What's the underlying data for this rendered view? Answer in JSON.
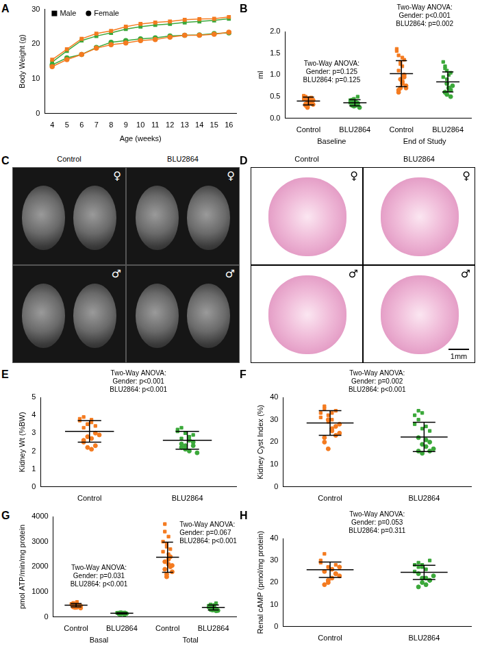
{
  "chart_data": [
    {
      "panel": "A",
      "type": "line",
      "xlabel": "Age (weeks)",
      "ylabel": "Body Weight (g)",
      "x": [
        4,
        5,
        6,
        7,
        8,
        9,
        10,
        11,
        12,
        13,
        14,
        15,
        16
      ],
      "xlim": [
        3.5,
        16.5
      ],
      "xticks": [
        4,
        5,
        6,
        7,
        8,
        9,
        10,
        11,
        12,
        13,
        14,
        15,
        16
      ],
      "ylim": [
        0,
        30
      ],
      "yticks": [
        0,
        10,
        20,
        30
      ],
      "grid": false,
      "legend": "top-left",
      "series": [
        {
          "name": "Male",
          "color": "#f47b20",
          "marker": "square",
          "values": [
            15.5,
            18.5,
            21.5,
            23,
            23.8,
            25,
            25.8,
            26.2,
            26.5,
            27,
            27.2,
            27.3,
            27.8
          ]
        },
        {
          "name": "Male",
          "color": "#3ba83a",
          "marker": "square",
          "values": [
            14.8,
            18,
            21,
            22.3,
            23.2,
            24.3,
            25,
            25.5,
            25.8,
            26.2,
            26.5,
            26.8,
            27.3
          ]
        },
        {
          "name": "Female",
          "color": "#f47b20",
          "marker": "circle",
          "values": [
            13.5,
            15.5,
            17,
            18.8,
            19.8,
            20.3,
            21,
            21.3,
            22,
            22.5,
            22.5,
            22.8,
            23.4
          ]
        },
        {
          "name": "Female",
          "color": "#3ba83a",
          "marker": "circle",
          "values": [
            14,
            16,
            17,
            19,
            20.5,
            21,
            21.5,
            21.8,
            22.3,
            22.5,
            22.6,
            23,
            23.2
          ]
        }
      ]
    },
    {
      "panel": "B",
      "type": "dot",
      "ylabel": "ml",
      "grid": false,
      "ylim": [
        0,
        2
      ],
      "yticks": [
        {
          "value": 0,
          "label": "0.0"
        },
        {
          "value": 0.5,
          "label": "0.5"
        },
        {
          "value": 1,
          "label": "1.0"
        },
        {
          "value": 1.5,
          "label": "1.5"
        },
        {
          "value": 2,
          "label": "2.0"
        }
      ],
      "categories": [
        "Control",
        "BLU2864",
        "Control",
        "BLU2864"
      ],
      "category_groups": [
        "Baseline",
        "End of Study"
      ],
      "annotations": [
        [
          "Two-Way ANOVA:",
          "Gender: p=0.125",
          "BLU2864: p=0.125"
        ],
        [
          "Two-Way ANOVA:",
          "Gender: p<0.001",
          "BLU2864: p=0.002"
        ]
      ],
      "points": [
        {
          "color": "#f47b20",
          "male": [
            0.45,
            0.5,
            0.42,
            0.38,
            0.48,
            0.52,
            0.44,
            0.4,
            0.47
          ],
          "female": [
            0.3,
            0.28,
            0.35,
            0.38,
            0.42,
            0.33,
            0.25,
            0.37,
            0.4,
            0.32
          ],
          "mean": 0.4,
          "sd": 0.09
        },
        {
          "color": "#3ba83a",
          "male": [
            0.42,
            0.4,
            0.45,
            0.38,
            0.5,
            0.36,
            0.43,
            0.39
          ],
          "female": [
            0.3,
            0.28,
            0.33,
            0.35,
            0.25,
            0.32,
            0.37,
            0.3,
            0.34
          ],
          "mean": 0.36,
          "sd": 0.07
        },
        {
          "color": "#f47b20",
          "male": [
            1.55,
            1.45,
            1.3,
            1.2,
            1.35,
            1.6,
            1.1,
            1.25,
            1.4
          ],
          "female": [
            0.6,
            0.7,
            0.85,
            0.95,
            0.75,
            0.65,
            0.9,
            0.8,
            1.0,
            0.7
          ],
          "mean": 1.03,
          "sd": 0.3
        },
        {
          "color": "#3ba83a",
          "male": [
            1.3,
            1.2,
            1.1,
            1.0,
            1.05,
            0.95,
            1.15,
            0.9
          ],
          "female": [
            0.6,
            0.55,
            0.7,
            0.65,
            0.75,
            0.6,
            0.8,
            0.7,
            0.5
          ],
          "mean": 0.84,
          "sd": 0.23
        }
      ]
    },
    {
      "panel": "E",
      "type": "dot",
      "ylabel": "Kidney Wt (%BW)",
      "grid": false,
      "ylim": [
        0,
        5
      ],
      "yticks": [
        0,
        1,
        2,
        3,
        4,
        5
      ],
      "categories": [
        "Control",
        "BLU2864"
      ],
      "annotations": [
        [
          "Two-Way ANOVA:",
          "Gender: p<0.001",
          "BLU2864: p<0.001"
        ]
      ],
      "points": [
        {
          "color": "#f47b20",
          "male": [
            3.7,
            3.9,
            3.5,
            3.6,
            3.4,
            3.8,
            3.3,
            3.5,
            3.75
          ],
          "female": [
            2.5,
            2.2,
            2.7,
            2.3,
            2.9,
            2.6,
            2.8,
            2.1,
            3.0
          ],
          "mean": 3.1,
          "sd": 0.6
        },
        {
          "color": "#3ba83a",
          "male": [
            3.2,
            3.3,
            3.0,
            2.8,
            2.9,
            3.1,
            2.7,
            3.0
          ],
          "female": [
            2.2,
            2.3,
            2.0,
            2.5,
            1.9,
            2.4,
            2.1,
            2.6,
            2.3
          ],
          "mean": 2.6,
          "sd": 0.5
        }
      ]
    },
    {
      "panel": "F",
      "type": "dot",
      "ylabel": "Kidney Cyst Index (%)",
      "grid": false,
      "ylim": [
        0,
        40
      ],
      "yticks": [
        0,
        10,
        20,
        30,
        40
      ],
      "categories": [
        "Control",
        "BLU2864"
      ],
      "annotations": [
        [
          "Two-Way ANOVA:",
          "Gender: p=0.002",
          "BLU2864: p<0.001"
        ]
      ],
      "points": [
        {
          "color": "#f47b20",
          "male": [
            33,
            35,
            32,
            30,
            34,
            31,
            36,
            29,
            33
          ],
          "female": [
            22,
            17,
            25,
            27,
            24,
            20,
            30,
            26,
            23,
            28
          ],
          "mean": 28.5,
          "sd": 5.5
        },
        {
          "color": "#3ba83a",
          "male": [
            28,
            30,
            33,
            27,
            25,
            32,
            34,
            26
          ],
          "female": [
            16,
            15,
            18,
            20,
            17,
            22,
            19,
            21,
            16
          ],
          "mean": 22.3,
          "sd": 6.5
        }
      ]
    },
    {
      "panel": "G",
      "type": "dot",
      "ylabel": "pmol ATP/min/mg protein",
      "grid": false,
      "ylim": [
        0,
        4000
      ],
      "yticks": [
        0,
        1000,
        2000,
        3000,
        4000
      ],
      "categories": [
        "Control",
        "BLU2864",
        "Control",
        "BLU2864"
      ],
      "category_groups": [
        "Basal",
        "Total"
      ],
      "annotations": [
        [
          "Two-Way ANOVA:",
          "Gender: p=0.031",
          "BLU2864: p<0.001"
        ],
        [
          "Two-Way ANOVA:",
          "Gender: p=0.067",
          "BLU2864: p<0.001"
        ]
      ],
      "points": [
        {
          "color": "#f47b20",
          "male": [
            520,
            560,
            480,
            600,
            450,
            510,
            540,
            490,
            470
          ],
          "female": [
            400,
            380,
            430,
            450,
            360,
            420,
            470,
            390,
            410,
            440
          ],
          "mean": 470,
          "sd": 70
        },
        {
          "color": "#3ba83a",
          "male": [
            170,
            160,
            190,
            150,
            180,
            165,
            175,
            155
          ],
          "female": [
            130,
            120,
            140,
            110,
            135,
            125,
            145,
            130,
            115
          ],
          "mean": 150,
          "sd": 25
        },
        {
          "color": "#f47b20",
          "male": [
            3000,
            3700,
            2900,
            3200,
            2700,
            2600,
            3400,
            2800,
            2500
          ],
          "female": [
            1900,
            1700,
            2100,
            2000,
            1800,
            2200,
            1600,
            2300,
            2400,
            2050
          ],
          "mean": 2380,
          "sd": 600
        },
        {
          "color": "#3ba83a",
          "male": [
            450,
            500,
            420,
            480,
            550,
            390,
            460,
            430
          ],
          "female": [
            300,
            280,
            350,
            320,
            260,
            330,
            370,
            290,
            250
          ],
          "mean": 380,
          "sd": 100
        }
      ]
    },
    {
      "panel": "H",
      "type": "dot",
      "ylabel": "Renal cAMP (pmol/mg protein)",
      "grid": false,
      "ylim": [
        0,
        40
      ],
      "yticks": [
        0,
        10,
        20,
        30,
        40
      ],
      "categories": [
        "Control",
        "BLU2864"
      ],
      "annotations": [
        [
          "Two-Way ANOVA:",
          "Gender: p=0.053",
          "BLU2864: p=0.311"
        ]
      ],
      "points": [
        {
          "color": "#f47b20",
          "male": [
            29,
            33,
            27,
            26,
            28,
            30,
            25,
            27,
            26
          ],
          "female": [
            19,
            21,
            22,
            24,
            23,
            25,
            20,
            26,
            24,
            27
          ],
          "mean": 25.8,
          "sd": 3.5
        },
        {
          "color": "#3ba83a",
          "male": [
            28,
            29,
            27,
            26,
            30,
            25,
            27,
            28
          ],
          "female": [
            18,
            20,
            22,
            21,
            23,
            24,
            22,
            19,
            21
          ],
          "mean": 24.6,
          "sd": 3.2
        }
      ]
    }
  ],
  "image_panels": [
    {
      "panel": "C",
      "columns": [
        "Control",
        "BLU2864"
      ],
      "rows": [
        "♀",
        "♂"
      ]
    },
    {
      "panel": "D",
      "columns": [
        "Control",
        "BLU2864"
      ],
      "rows": [
        "♀",
        "♂"
      ],
      "scale_bar": "1mm"
    }
  ]
}
